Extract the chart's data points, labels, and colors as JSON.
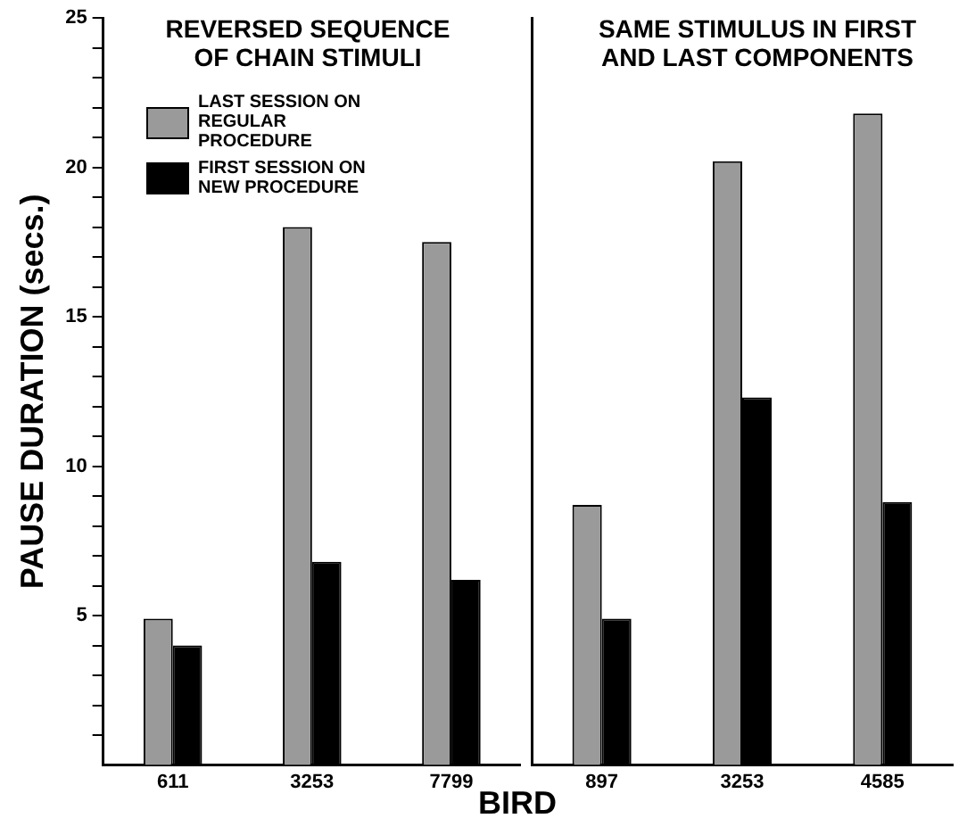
{
  "chart_data": [
    {
      "type": "bar",
      "title": "REVERSED SEQUENCE OF CHAIN STIMULI",
      "xlabel": "BIRD",
      "ylabel": "PAUSE DURATION (secs.)",
      "categories": [
        "611",
        "3253",
        "7799"
      ],
      "series": [
        {
          "name": "LAST SESSION ON REGULAR PROCEDURE",
          "color": "#9a9a9a",
          "values": [
            4.9,
            18.0,
            17.5
          ]
        },
        {
          "name": "FIRST SESSION ON NEW PROCEDURE",
          "color": "#000000",
          "values": [
            4.0,
            6.8,
            6.2
          ]
        }
      ],
      "ylim": [
        0,
        25
      ],
      "yticks": [
        {
          "value": 1,
          "label": null
        },
        {
          "value": 2,
          "label": null
        },
        {
          "value": 3,
          "label": null
        },
        {
          "value": 4,
          "label": null
        },
        5,
        {
          "value": 6,
          "label": null
        },
        {
          "value": 7,
          "label": null
        },
        {
          "value": 8,
          "label": null
        },
        {
          "value": 9,
          "label": null
        },
        10,
        {
          "value": 11,
          "label": null
        },
        {
          "value": 12,
          "label": null
        },
        {
          "value": 13,
          "label": null
        },
        {
          "value": 14,
          "label": null
        },
        15,
        {
          "value": 16,
          "label": null
        },
        {
          "value": 17,
          "label": null
        },
        {
          "value": 18,
          "label": null
        },
        {
          "value": 19,
          "label": null
        },
        20,
        {
          "value": 21,
          "label": null
        },
        {
          "value": 22,
          "label": null
        },
        {
          "value": 23,
          "label": null
        },
        {
          "value": 24,
          "label": null
        },
        25
      ],
      "grid": false,
      "legend": "top left"
    },
    {
      "type": "bar",
      "title": "SAME STIMULUS IN FIRST AND LAST COMPONENTS",
      "categories": [
        "897",
        "3253",
        "4585"
      ],
      "series": [
        {
          "color": "#9a9a9a",
          "values": [
            8.7,
            20.2,
            21.8
          ]
        },
        {
          "color": "#000000",
          "values": [
            4.9,
            12.3,
            8.8
          ]
        }
      ],
      "ylim": [
        0,
        25
      ],
      "tick_labels": "x",
      "grid": false
    }
  ]
}
